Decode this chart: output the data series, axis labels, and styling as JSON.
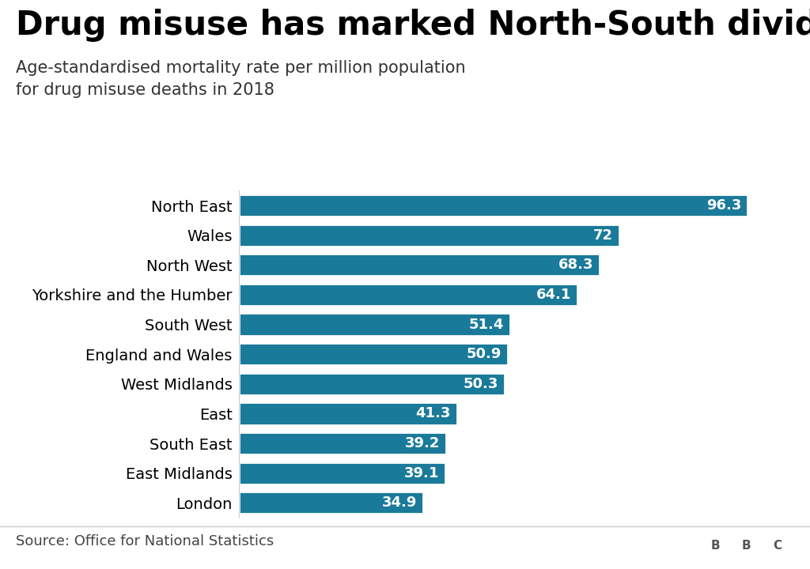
{
  "title": "Drug misuse has marked North-South divide",
  "subtitle": "Age-standardised mortality rate per million population\nfor drug misuse deaths in 2018",
  "source": "Source: Office for National Statistics",
  "categories": [
    "North East",
    "Wales",
    "North West",
    "Yorkshire and the Humber",
    "South West",
    "England and Wales",
    "West Midlands",
    "East",
    "South East",
    "East Midlands",
    "London"
  ],
  "values": [
    96.3,
    72.0,
    68.3,
    64.1,
    51.4,
    50.9,
    50.3,
    41.3,
    39.2,
    39.1,
    34.9
  ],
  "bar_color": "#1a7a9a",
  "background_color": "#ffffff",
  "label_color": "#ffffff",
  "title_color": "#000000",
  "subtitle_color": "#333333",
  "source_color": "#444444",
  "xlim": [
    0,
    105
  ],
  "bar_label_fontsize": 13,
  "title_fontsize": 30,
  "subtitle_fontsize": 15,
  "category_fontsize": 14,
  "source_fontsize": 13,
  "bbc_bg_color": "#555555"
}
